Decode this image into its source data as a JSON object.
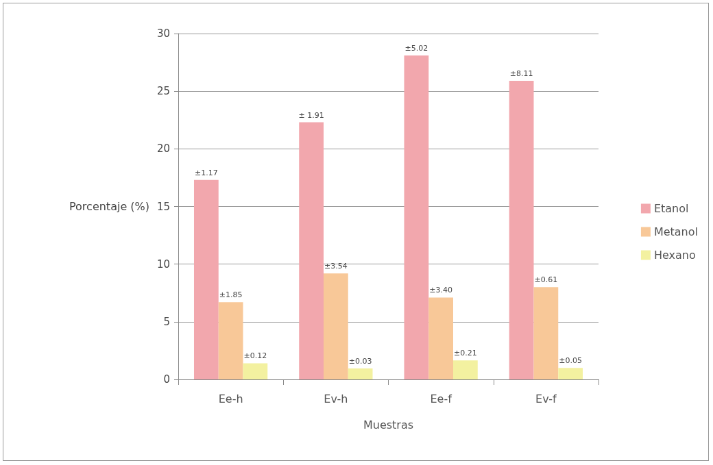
{
  "chart_data": {
    "type": "bar",
    "xlabel": "Muestras",
    "ylabel": "Porcentaje (%)",
    "categories": [
      "Ee-h",
      "Ev-h",
      "Ee-f",
      "Ev-f"
    ],
    "series": [
      {
        "name": "Etanol",
        "color": "#f2a7ad",
        "values": [
          17.3,
          22.3,
          28.1,
          25.9
        ]
      },
      {
        "name": "Metanol",
        "color": "#f8c898",
        "values": [
          6.7,
          9.2,
          7.1,
          8.0
        ]
      },
      {
        "name": "Hexano",
        "color": "#f3f1a0",
        "values": [
          1.4,
          0.95,
          1.65,
          1.0
        ]
      }
    ],
    "annotations": [
      "±1.17",
      "± 1.91",
      "±5.02",
      "±8.11",
      "±1.85",
      "±3.54",
      "±3.40",
      "±0.61",
      "±0.12",
      "±0.03",
      "±0.21",
      "±0.05"
    ],
    "ylim": [
      0,
      30
    ],
    "yticks": [
      0,
      5,
      10,
      15,
      20,
      25,
      30
    ],
    "grid": "y",
    "legend": "right"
  }
}
